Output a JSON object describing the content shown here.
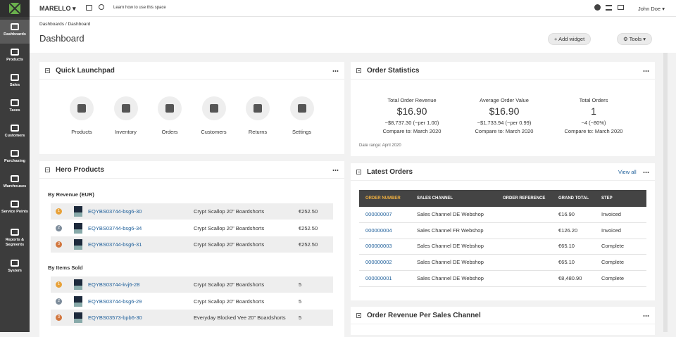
{
  "nav": {
    "brand": "MARELLO",
    "help_link": "Learn how to use this space",
    "user": "John Doe"
  },
  "sidebar": [
    "Dashboards",
    "Products",
    "Sales",
    "Taxes",
    "Customers",
    "Purchasing",
    "Warehouses",
    "Service Points",
    "Reports & Segments",
    "System"
  ],
  "header": {
    "breadcrumb": "Dashboards / Dashboard",
    "title": "Dashboard",
    "add_widget": "Add widget",
    "tools": "Tools"
  },
  "quick_launchpad": {
    "title": "Quick Launchpad",
    "items": [
      "Products",
      "Inventory",
      "Orders",
      "Customers",
      "Returns",
      "Settings"
    ]
  },
  "order_statistics": {
    "title": "Order Statistics",
    "metrics": [
      {
        "label": "Total Order Revenue",
        "value": "$16.90",
        "change": "−$8,737.30 (−per 1.00)",
        "compare": "Compare to: March 2020"
      },
      {
        "label": "Average Order Value",
        "value": "$16.90",
        "change": "−$1,733.94 (−per 0.99)",
        "compare": "Compare to: March 2020"
      },
      {
        "label": "Total Orders",
        "value": "1",
        "change": "−4 (−80%)",
        "compare": "Compare to: March 2020"
      }
    ],
    "date_range": "Date range: April 2020"
  },
  "hero_products": {
    "title": "Hero Products",
    "sections": [
      {
        "heading": "By Revenue (EUR)",
        "rows": [
          {
            "rank": "1",
            "sku": "EQYBS03744-bsg6-30",
            "name": "Crypt Scallop 20\" Boardshorts",
            "amount": "€252.50"
          },
          {
            "rank": "2",
            "sku": "EQYBS03744-bsg6-34",
            "name": "Crypt Scallop 20\" Boardshorts",
            "amount": "€252.50"
          },
          {
            "rank": "3",
            "sku": "EQYBS03744-bsg6-31",
            "name": "Crypt Scallop 20\" Boardshorts",
            "amount": "€252.50"
          }
        ]
      },
      {
        "heading": "By Items Sold",
        "rows": [
          {
            "rank": "1",
            "sku": "EQYBS03744-kvj6-28",
            "name": "Crypt Scallop 20\" Boardshorts",
            "amount": "5"
          },
          {
            "rank": "2",
            "sku": "EQYBS03744-bsg6-29",
            "name": "Crypt Scallop 20\" Boardshorts",
            "amount": "5"
          },
          {
            "rank": "3",
            "sku": "EQYBS03573-bpb6-30",
            "name": "Everyday Blocked Vee 20\" Boardshorts",
            "amount": "5"
          }
        ]
      }
    ]
  },
  "latest_orders": {
    "title": "Latest Orders",
    "view_all": "View all",
    "columns": [
      "ORDER NUMBER",
      "SALES CHANNEL",
      "ORDER REFERENCE",
      "GRAND TOTAL",
      "STEP"
    ],
    "rows": [
      [
        "000000007",
        "Sales Channel DE Webshop",
        "",
        "€16.90",
        "Invoiced"
      ],
      [
        "000000004",
        "Sales Channel FR Webshop",
        "",
        "€126.20",
        "Invoiced"
      ],
      [
        "000000003",
        "Sales Channel DE Webshop",
        "",
        "€65.10",
        "Complete"
      ],
      [
        "000000002",
        "Sales Channel DE Webshop",
        "",
        "€65.10",
        "Complete"
      ],
      [
        "000000001",
        "Sales Channel DE Webshop",
        "",
        "€8,480.90",
        "Complete"
      ]
    ]
  },
  "revenue_per_channel": {
    "title": "Order Revenue Per Sales Channel"
  }
}
